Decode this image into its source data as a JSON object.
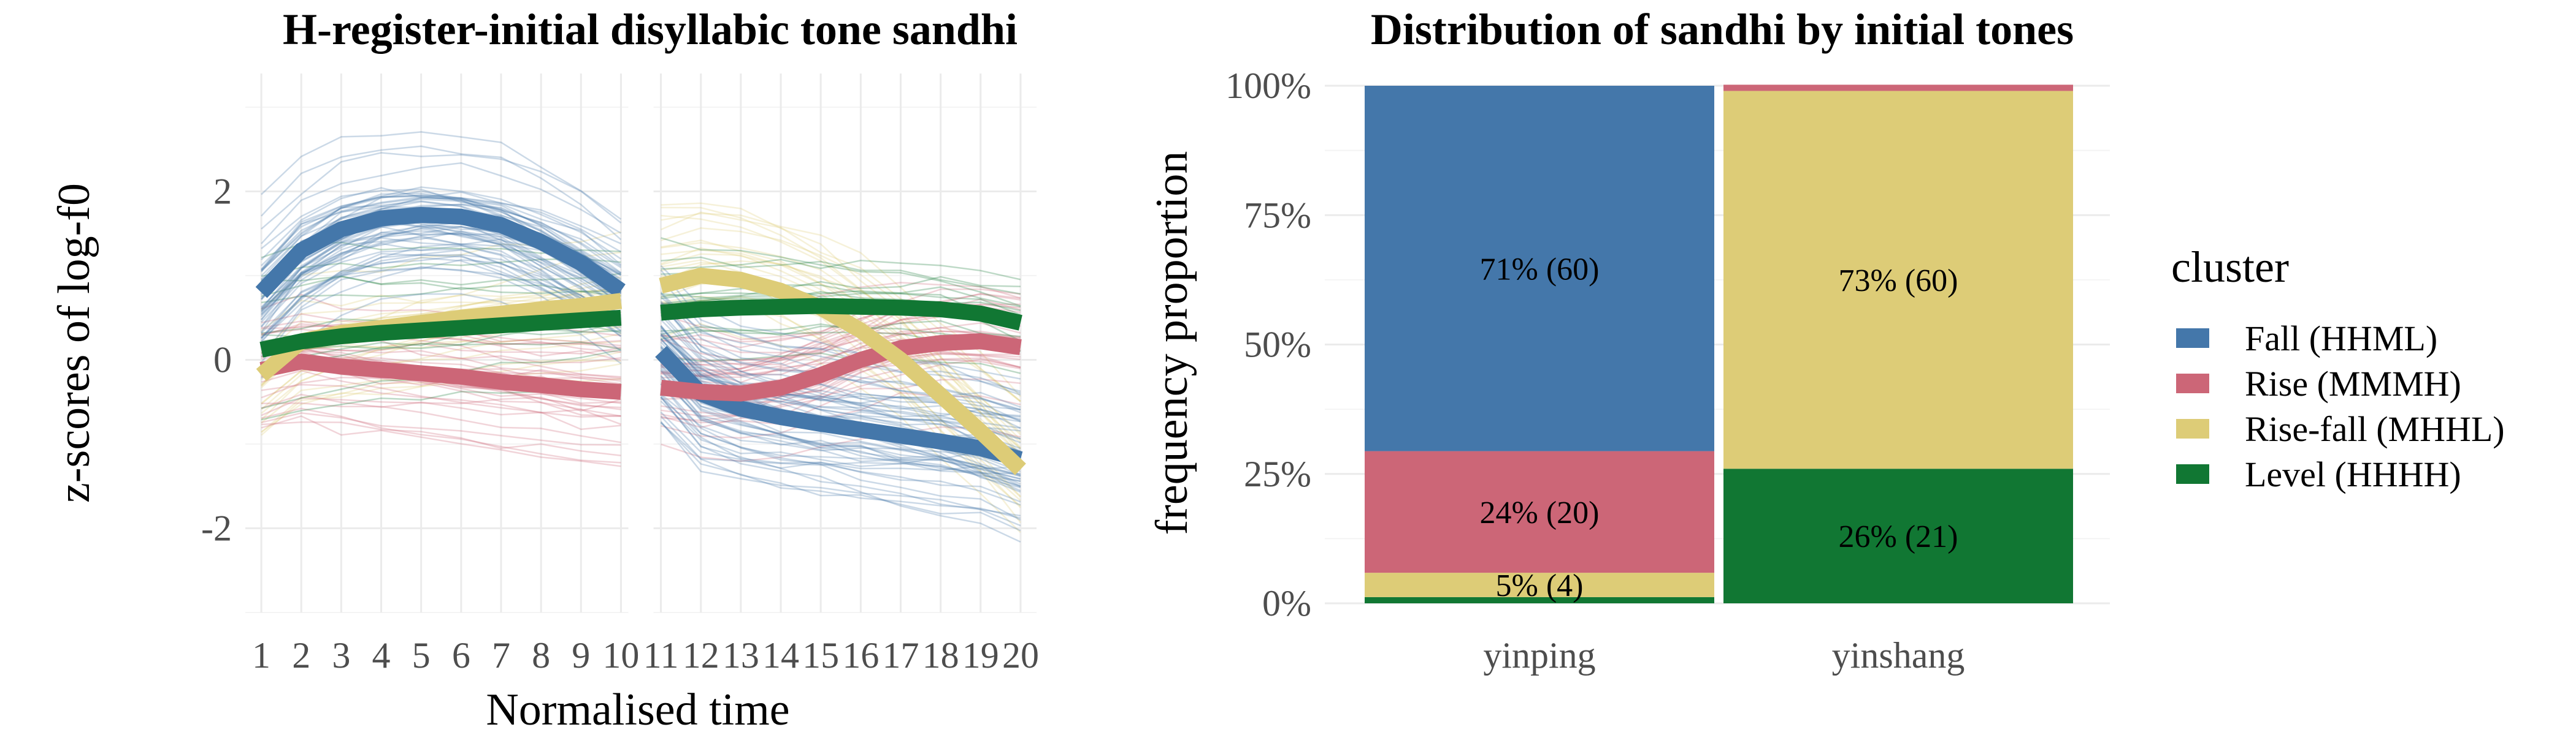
{
  "colors": {
    "fall": "#4477AA",
    "rise": "#CC6677",
    "risefall": "#DDCC77",
    "level": "#117733"
  },
  "chart_data": [
    {
      "type": "line",
      "title": "H-register-initial disyllabic tone sandhi",
      "xlabel": "Normalised time",
      "ylabel": "z-scores of log-f0",
      "x": [
        1,
        2,
        3,
        4,
        5,
        6,
        7,
        8,
        9,
        10,
        11,
        12,
        13,
        14,
        15,
        16,
        17,
        18,
        19,
        20
      ],
      "x_ticks": [
        "1",
        "2",
        "3",
        "4",
        "5",
        "6",
        "7",
        "8",
        "9",
        "10",
        "11",
        "12",
        "13",
        "14",
        "15",
        "16",
        "17",
        "18",
        "19",
        "20"
      ],
      "y_ticks": [
        "-2",
        "0",
        "2"
      ],
      "y_tick_values": [
        -2,
        0,
        2
      ],
      "ylim": [
        -3.0,
        3.4
      ],
      "xlim": [
        0.6,
        20.4
      ],
      "grid": true,
      "series": [
        {
          "name": "Fall (HHML)",
          "color_key": "fall",
          "values": [
            0.8,
            1.3,
            1.55,
            1.68,
            1.72,
            1.7,
            1.6,
            1.4,
            1.15,
            0.82,
            0.1,
            -0.4,
            -0.58,
            -0.68,
            -0.76,
            -0.83,
            -0.9,
            -0.97,
            -1.05,
            -1.18
          ]
        },
        {
          "name": "Rise (MMMH)",
          "color_key": "rise",
          "values": [
            -0.12,
            -0.02,
            -0.08,
            -0.12,
            -0.16,
            -0.2,
            -0.26,
            -0.3,
            -0.35,
            -0.38,
            -0.33,
            -0.38,
            -0.4,
            -0.33,
            -0.18,
            0.0,
            0.14,
            0.2,
            0.22,
            0.15
          ]
        },
        {
          "name": "Rise-fall (MHHL)",
          "color_key": "risefall",
          "values": [
            -0.18,
            0.22,
            0.32,
            0.38,
            0.44,
            0.5,
            0.55,
            0.6,
            0.64,
            0.7,
            0.88,
            1.0,
            0.95,
            0.82,
            0.62,
            0.35,
            0.0,
            -0.42,
            -0.85,
            -1.3
          ]
        },
        {
          "name": "Level (HHHH)",
          "color_key": "level",
          "values": [
            0.12,
            0.22,
            0.28,
            0.32,
            0.35,
            0.38,
            0.41,
            0.44,
            0.47,
            0.5,
            0.56,
            0.6,
            0.62,
            0.63,
            0.64,
            0.63,
            0.62,
            0.6,
            0.55,
            0.44
          ]
        }
      ],
      "token_lines": {
        "note": "",
        "fall_count": 60,
        "rise_count": 20,
        "risefall_count": 4,
        "level_count": 1
      }
    },
    {
      "type": "bar",
      "stacked": true,
      "title": "Distribution of sandhi by initial tones",
      "xlabel": "",
      "ylabel": "frequency proportion",
      "categories": [
        "yinping",
        "yinshang"
      ],
      "y_ticks": [
        "0%",
        "25%",
        "50%",
        "75%",
        "100%"
      ],
      "y_tick_values": [
        0,
        0.25,
        0.5,
        0.75,
        1.0
      ],
      "ylim": [
        0,
        1
      ],
      "grid": true,
      "series": [
        {
          "name": "Level (HHHH)",
          "color_key": "level",
          "values": [
            0.012,
            0.26
          ],
          "labels": [
            "",
            "26% (21)"
          ]
        },
        {
          "name": "Rise-fall (MHHL)",
          "color_key": "risefall",
          "values": [
            0.047,
            0.73
          ],
          "labels": [
            "5% (4)",
            "73% (60)"
          ]
        },
        {
          "name": "Rise (MMMH)",
          "color_key": "rise",
          "values": [
            0.235,
            0.012
          ],
          "labels": [
            "24% (20)",
            ""
          ]
        },
        {
          "name": "Fall (HHML)",
          "color_key": "fall",
          "values": [
            0.706,
            0.0
          ],
          "labels": [
            "71% (60)",
            ""
          ]
        }
      ],
      "legend": {
        "title": "cluster",
        "position": "right",
        "items": [
          {
            "label": "Fall (HHML)",
            "color_key": "fall"
          },
          {
            "label": "Rise (MMMH)",
            "color_key": "rise"
          },
          {
            "label": "Rise-fall (MHHL)",
            "color_key": "risefall"
          },
          {
            "label": "Level (HHHH)",
            "color_key": "level"
          }
        ]
      }
    }
  ]
}
